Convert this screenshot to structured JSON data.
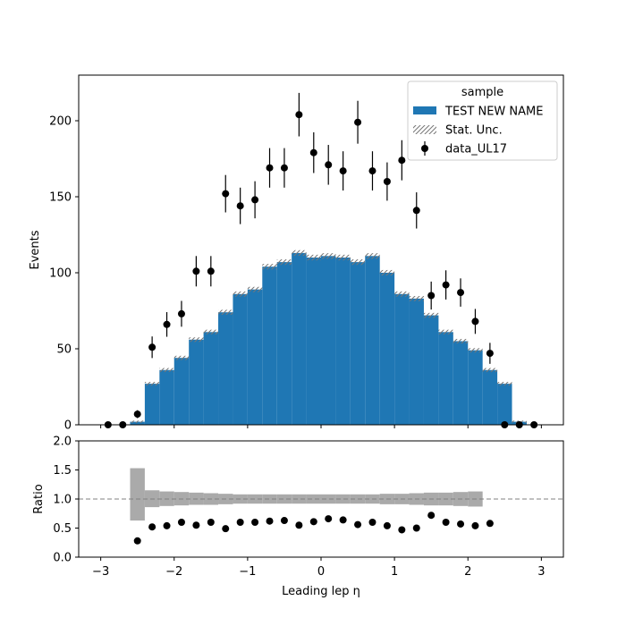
{
  "chart_data": [
    {
      "type": "bar",
      "panel": "main",
      "ylabel": "Events",
      "xlim": [
        -3.3,
        3.3
      ],
      "ylim": [
        0,
        230
      ],
      "xticks": [
        -3,
        -2,
        -1,
        0,
        1,
        2,
        3
      ],
      "xtick_labels": [
        "",
        "",
        "",
        "",
        "",
        "",
        ""
      ],
      "yticks": [
        0,
        50,
        100,
        150,
        200
      ],
      "ytick_labels": [
        "0",
        "50",
        "100",
        "150",
        "200"
      ],
      "bin_edges": [
        -3.0,
        -2.8,
        -2.6,
        -2.4,
        -2.2,
        -2.0,
        -1.8,
        -1.6,
        -1.4,
        -1.2,
        -1.0,
        -0.8,
        -0.6,
        -0.4,
        -0.2,
        0.0,
        0.2,
        0.4,
        0.6,
        0.8,
        1.0,
        1.2,
        1.4,
        1.6,
        1.8,
        2.0,
        2.2,
        2.4,
        2.6,
        2.8,
        3.0
      ],
      "legend": {
        "title": "sample",
        "placement": "upper right",
        "entries": [
          "TEST NEW NAME",
          "Stat. Unc.",
          "data_UL17"
        ]
      },
      "series": [
        {
          "name": "TEST NEW NAME",
          "kind": "stacked-histogram",
          "color": "#1f77b4",
          "values": [
            0,
            0,
            2,
            27,
            36,
            44,
            56,
            61,
            74,
            86,
            89,
            104,
            107,
            113,
            110,
            111,
            110,
            107,
            111,
            100,
            86,
            83,
            72,
            61,
            55,
            49,
            36,
            27,
            2,
            0
          ]
        },
        {
          "name": "data_UL17",
          "kind": "errorbar",
          "color": "#000000",
          "x": [
            -2.9,
            -2.7,
            -2.5,
            -2.3,
            -2.1,
            -1.9,
            -1.7,
            -1.5,
            -1.3,
            -1.1,
            -0.9,
            -0.7,
            -0.5,
            -0.3,
            -0.1,
            0.1,
            0.3,
            0.5,
            0.7,
            0.9,
            1.1,
            1.3,
            1.5,
            1.7,
            1.9,
            2.1,
            2.3,
            2.5,
            2.7,
            2.9
          ],
          "values": [
            0,
            0,
            7,
            51,
            66,
            73,
            101,
            101,
            152,
            144,
            148,
            169,
            169,
            204,
            179,
            171,
            167,
            199,
            167,
            160,
            174,
            141,
            85,
            92,
            87,
            68,
            47,
            0,
            0,
            0
          ],
          "errors": [
            0,
            0,
            2.6,
            7.1,
            8.1,
            8.5,
            10.0,
            10.0,
            12.3,
            12.0,
            12.2,
            13.0,
            13.0,
            14.3,
            13.4,
            13.1,
            12.9,
            14.1,
            12.9,
            12.6,
            13.2,
            11.9,
            9.2,
            9.6,
            9.3,
            8.2,
            6.9,
            0,
            0,
            0
          ]
        }
      ]
    },
    {
      "type": "scatter",
      "panel": "ratio",
      "xlabel": "Leading lep η",
      "ylabel": "Ratio",
      "xlim": [
        -3.3,
        3.3
      ],
      "ylim": [
        0.0,
        2.0
      ],
      "xticks": [
        -3,
        -2,
        -1,
        0,
        1,
        2,
        3
      ],
      "xtick_labels": [
        "−3",
        "−2",
        "−1",
        "0",
        "1",
        "2",
        "3"
      ],
      "yticks": [
        0.0,
        0.5,
        1.0,
        1.5,
        2.0
      ],
      "ytick_labels": [
        "0.0",
        "0.5",
        "1.0",
        "1.5",
        "2.0"
      ],
      "reference_line": 1.0,
      "uncertainty_band": {
        "color": "#aaaaaa",
        "bin_edges": [
          -2.6,
          -2.4,
          -2.2,
          -2.0,
          -1.8,
          -1.6,
          -1.4,
          -1.2,
          -1.0,
          -0.8,
          -0.6,
          -0.4,
          -0.2,
          0.0,
          0.2,
          0.4,
          0.6,
          0.8,
          1.0,
          1.2,
          1.4,
          1.6,
          1.8,
          2.0,
          2.2
        ],
        "low": [
          0.63,
          0.86,
          0.88,
          0.89,
          0.9,
          0.9,
          0.91,
          0.92,
          0.92,
          0.92,
          0.92,
          0.92,
          0.92,
          0.92,
          0.92,
          0.92,
          0.92,
          0.91,
          0.91,
          0.9,
          0.89,
          0.89,
          0.88,
          0.87
        ],
        "high": [
          1.53,
          1.15,
          1.13,
          1.12,
          1.11,
          1.1,
          1.09,
          1.08,
          1.08,
          1.08,
          1.08,
          1.08,
          1.08,
          1.08,
          1.08,
          1.08,
          1.08,
          1.09,
          1.09,
          1.1,
          1.11,
          1.11,
          1.12,
          1.13
        ]
      },
      "x": [
        -2.5,
        -2.3,
        -2.1,
        -1.9,
        -1.7,
        -1.5,
        -1.3,
        -1.1,
        -0.9,
        -0.7,
        -0.5,
        -0.3,
        -0.1,
        0.1,
        0.3,
        0.5,
        0.7,
        0.9,
        1.1,
        1.3,
        1.5,
        1.7,
        1.9,
        2.1,
        2.3
      ],
      "values": [
        0.28,
        0.52,
        0.54,
        0.6,
        0.55,
        0.6,
        0.49,
        0.6,
        0.6,
        0.62,
        0.63,
        0.55,
        0.61,
        0.66,
        0.64,
        0.56,
        0.6,
        0.54,
        0.47,
        0.5,
        0.72,
        0.6,
        0.57,
        0.54,
        0.58
      ]
    }
  ]
}
